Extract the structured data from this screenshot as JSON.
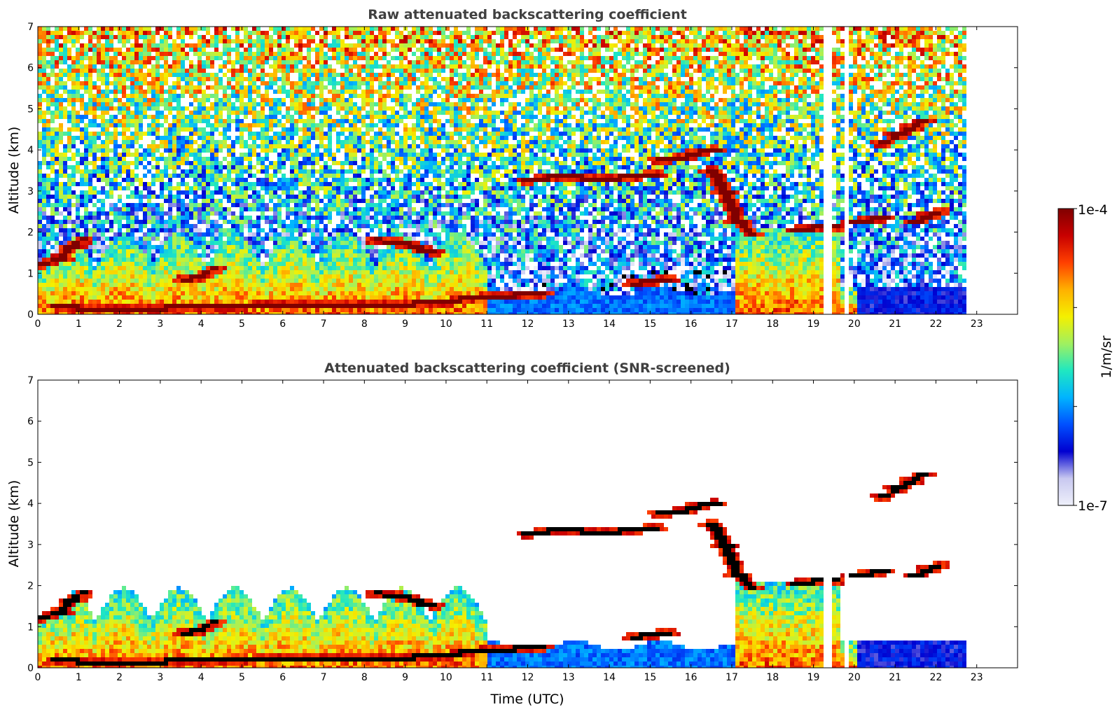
{
  "chart_data": [
    {
      "type": "heatmap",
      "title": "Raw attenuated backscattering coefficient",
      "xlabel": "",
      "ylabel": "Altitude (km)",
      "xlim": [
        0,
        24
      ],
      "ylim": [
        0,
        7
      ],
      "xticks": [
        "0",
        "1",
        "2",
        "3",
        "4",
        "5",
        "6",
        "7",
        "8",
        "9",
        "10",
        "11",
        "12",
        "13",
        "14",
        "15",
        "16",
        "17",
        "18",
        "19",
        "20",
        "21",
        "22",
        "23"
      ],
      "yticks": [
        "0",
        "1",
        "2",
        "3",
        "4",
        "5",
        "6",
        "7"
      ],
      "data_extent_hours": [
        0,
        22.65
      ],
      "screened": false,
      "features": [
        {
          "kind": "boundary-layer-top",
          "points": [
            [
              0.5,
              0.25
            ],
            [
              1.0,
              0.2
            ],
            [
              2.0,
              0.18
            ],
            [
              3.0,
              0.2
            ],
            [
              4.0,
              0.25
            ],
            [
              5.0,
              0.25
            ],
            [
              6.0,
              0.3
            ],
            [
              7.0,
              0.3
            ],
            [
              8.0,
              0.3
            ],
            [
              9.0,
              0.3
            ],
            [
              10.0,
              0.35
            ],
            [
              10.5,
              0.45
            ],
            [
              11.5,
              0.5
            ],
            [
              12.2,
              0.55
            ]
          ]
        },
        {
          "kind": "cloud-layer",
          "points": [
            [
              0.0,
              1.25
            ],
            [
              0.5,
              1.4
            ],
            [
              0.8,
              1.7
            ],
            [
              1.0,
              1.85
            ]
          ]
        },
        {
          "kind": "cloud-layer",
          "points": [
            [
              3.6,
              0.9
            ],
            [
              3.9,
              0.95
            ],
            [
              4.2,
              1.15
            ]
          ]
        },
        {
          "kind": "cloud-layer",
          "points": [
            [
              8.3,
              1.85
            ],
            [
              8.7,
              1.8
            ],
            [
              9.0,
              1.75
            ],
            [
              9.4,
              1.62
            ],
            [
              9.6,
              1.55
            ]
          ]
        },
        {
          "kind": "cloud-layer",
          "points": [
            [
              12.0,
              3.3
            ],
            [
              12.5,
              3.38
            ],
            [
              13.0,
              3.4
            ],
            [
              13.5,
              3.35
            ],
            [
              14.0,
              3.35
            ],
            [
              14.5,
              3.4
            ],
            [
              15.0,
              3.45
            ]
          ]
        },
        {
          "kind": "cloud-layer",
          "points": [
            [
              15.2,
              3.8
            ],
            [
              15.7,
              3.85
            ],
            [
              16.0,
              3.95
            ],
            [
              16.5,
              4.05
            ]
          ]
        },
        {
          "kind": "cloud-layer",
          "points": [
            [
              16.5,
              3.55
            ],
            [
              16.8,
              3.0
            ],
            [
              17.1,
              2.3
            ],
            [
              17.4,
              2.0
            ]
          ]
        },
        {
          "kind": "cloud-layer",
          "points": [
            [
              20.0,
              2.3
            ],
            [
              20.4,
              2.35
            ],
            [
              20.6,
              2.4
            ]
          ]
        },
        {
          "kind": "cloud-layer",
          "points": [
            [
              20.7,
              4.2
            ],
            [
              21.0,
              4.4
            ],
            [
              21.4,
              4.6
            ],
            [
              21.6,
              4.75
            ]
          ]
        },
        {
          "kind": "cloud-layer",
          "points": [
            [
              21.5,
              2.3
            ],
            [
              21.8,
              2.45
            ],
            [
              22.0,
              2.55
            ]
          ]
        },
        {
          "kind": "cloud-layer",
          "points": [
            [
              14.6,
              0.8
            ],
            [
              15.0,
              0.85
            ],
            [
              15.3,
              0.9
            ]
          ]
        },
        {
          "kind": "cloud-layer",
          "points": [
            [
              18.6,
              2.1
            ],
            [
              19.0,
              2.15
            ],
            [
              19.5,
              2.15
            ]
          ]
        }
      ]
    },
    {
      "type": "heatmap",
      "title": "Attenuated backscattering coefficient (SNR-screened)",
      "xlabel": "Time (UTC)",
      "ylabel": "Altitude (km)",
      "xlim": [
        0,
        24
      ],
      "ylim": [
        0,
        7
      ],
      "xticks": [
        "0",
        "1",
        "2",
        "3",
        "4",
        "5",
        "6",
        "7",
        "8",
        "9",
        "10",
        "11",
        "12",
        "13",
        "14",
        "15",
        "16",
        "17",
        "18",
        "19",
        "20",
        "21",
        "22",
        "23"
      ],
      "yticks": [
        "0",
        "1",
        "2",
        "3",
        "4",
        "5",
        "6",
        "7"
      ],
      "data_extent_hours": [
        0,
        22.65
      ],
      "screened": true
    }
  ],
  "colorbar": {
    "label": "1/m/sr",
    "max_label": "1e-4",
    "min_label": "1e-7",
    "scale": "log",
    "range": [
      1e-07,
      0.0001
    ],
    "colormap": [
      "#eef0fa",
      "#c8c8f0",
      "#0000d0",
      "#0050ff",
      "#00b4ff",
      "#20e8c0",
      "#a0f060",
      "#f4f000",
      "#ffb000",
      "#ff4000",
      "#c80000",
      "#800000"
    ]
  }
}
